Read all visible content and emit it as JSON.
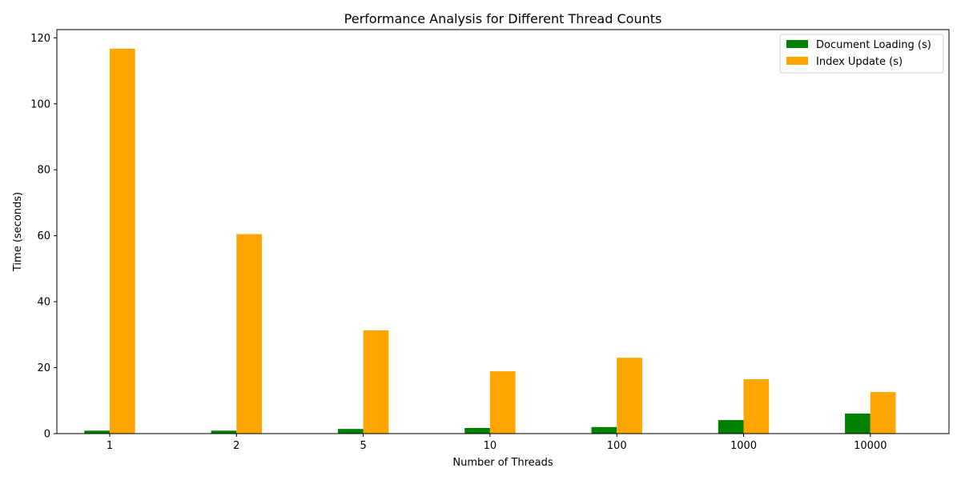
{
  "chart_data": {
    "type": "bar",
    "title": "Performance Analysis for Different Thread Counts",
    "xlabel": "Number of Threads",
    "ylabel": "Time (seconds)",
    "categories": [
      "1",
      "2",
      "5",
      "10",
      "100",
      "1000",
      "10000"
    ],
    "series": [
      {
        "name": "Document Loading (s)",
        "color": "#008000",
        "values": [
          0.9,
          0.9,
          1.4,
          1.7,
          2.0,
          4.1,
          6.1
        ]
      },
      {
        "name": "Index Update (s)",
        "color": "#ffa500",
        "values": [
          116.7,
          60.5,
          31.3,
          18.9,
          23.0,
          16.5,
          12.6
        ]
      }
    ],
    "ylim": [
      0,
      122.5
    ],
    "yticks": [
      0,
      20,
      40,
      60,
      80,
      100,
      120
    ],
    "grid": false,
    "legend": "top-right"
  }
}
